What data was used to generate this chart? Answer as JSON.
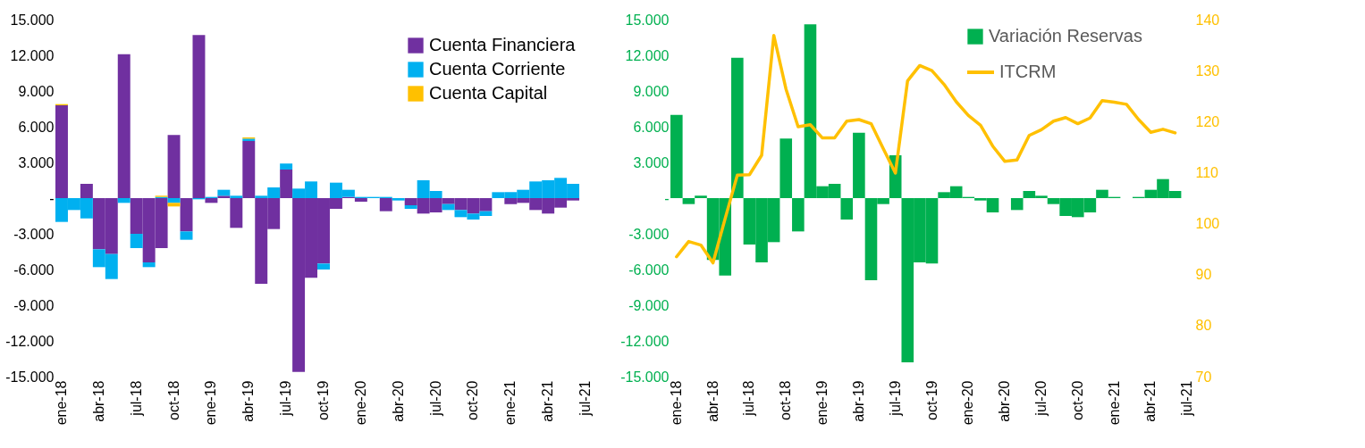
{
  "chart_data": [
    {
      "type": "bar",
      "stacked": true,
      "legend": "top right",
      "categories": [
        "ene-18",
        null,
        null,
        "abr-18",
        null,
        null,
        "jul-18",
        null,
        null,
        "oct-18",
        null,
        null,
        "ene-19",
        null,
        null,
        "abr-19",
        null,
        null,
        "jul-19",
        null,
        null,
        "oct-19",
        null,
        null,
        "ene-20",
        null,
        null,
        "abr-20",
        null,
        null,
        "jul-20",
        null,
        null,
        "oct-20",
        null,
        null,
        "ene-21",
        null,
        null,
        "abr-21",
        null,
        null,
        "jul-21"
      ],
      "ylim": [
        -15000,
        15000
      ],
      "yticks": [
        {
          "value": -15000,
          "label": "-15.000"
        },
        {
          "value": -12000,
          "label": "-12.000"
        },
        {
          "value": -9000,
          "label": "-9.000"
        },
        {
          "value": -6000,
          "label": "-6.000"
        },
        {
          "value": -3000,
          "label": "-3.000"
        },
        {
          "value": 0,
          "label": "-"
        },
        {
          "value": 3000,
          "label": "3.000"
        },
        {
          "value": 6000,
          "label": "6.000"
        },
        {
          "value": 9000,
          "label": "9.000"
        },
        {
          "value": 12000,
          "label": "12.000"
        },
        {
          "value": 15000,
          "label": "15.000"
        }
      ],
      "series": [
        {
          "name": "Cuenta Financiera",
          "color": "#7030a0",
          "values": [
            7800,
            null,
            1200,
            -4300,
            -4700,
            12100,
            -3000,
            -5400,
            -4200,
            5300,
            -2800,
            13700,
            -400,
            200,
            -2500,
            4800,
            -7200,
            -2600,
            2400,
            -14600,
            -6700,
            -5500,
            -900,
            100,
            -300,
            null,
            -1100,
            null,
            -600,
            -1300,
            -1200,
            -500,
            -1000,
            -1300,
            -1100,
            null,
            -500,
            -400,
            -1000,
            -1300,
            -800,
            -200,
            null
          ]
        },
        {
          "name": "Cuenta Corriente",
          "color": "#00b0f0",
          "values": [
            -2000,
            -1000,
            -1700,
            -1500,
            -2100,
            -400,
            -1200,
            -400,
            100,
            -400,
            -700,
            -100,
            100,
            500,
            200,
            200,
            200,
            900,
            500,
            800,
            1400,
            -500,
            1300,
            600,
            100,
            100,
            100,
            -200,
            -300,
            1500,
            600,
            -500,
            -600,
            -500,
            -400,
            500,
            500,
            700,
            1400,
            1500,
            1700,
            1200,
            null
          ]
        },
        {
          "name": "Cuenta Capital",
          "color": "#ffc000",
          "values": [
            100,
            null,
            null,
            null,
            null,
            null,
            null,
            null,
            100,
            -300,
            null,
            null,
            null,
            null,
            null,
            100,
            null,
            null,
            null,
            null,
            null,
            null,
            null,
            null,
            null,
            null,
            null,
            null,
            null,
            null,
            null,
            null,
            null,
            null,
            null,
            null,
            null,
            null,
            null,
            null,
            null,
            null,
            null
          ]
        }
      ]
    },
    {
      "type": "bar",
      "legend": "top right",
      "marker": "none",
      "categories": [
        "ene-18",
        null,
        null,
        "abr-18",
        null,
        null,
        "jul-18",
        null,
        null,
        "oct-18",
        null,
        null,
        "ene-19",
        null,
        null,
        "abr-19",
        null,
        null,
        "jul-19",
        null,
        null,
        "oct-19",
        null,
        null,
        "ene-20",
        null,
        null,
        "abr-20",
        null,
        null,
        "jul-20",
        null,
        null,
        "oct-20",
        null,
        null,
        "ene-21",
        null,
        null,
        "abr-21",
        null,
        null,
        "jul-21"
      ],
      "ylim": [
        -15000,
        15000
      ],
      "yticks": [
        {
          "value": -15000,
          "label": "-15.000"
        },
        {
          "value": -12000,
          "label": "-12.000"
        },
        {
          "value": -9000,
          "label": "-9.000"
        },
        {
          "value": -6000,
          "label": "-6.000"
        },
        {
          "value": -3000,
          "label": "-3.000"
        },
        {
          "value": 0,
          "label": "-"
        },
        {
          "value": 3000,
          "label": "3.000"
        },
        {
          "value": 6000,
          "label": "6.000"
        },
        {
          "value": 9000,
          "label": "9.000"
        },
        {
          "value": 12000,
          "label": "12.000"
        },
        {
          "value": 15000,
          "label": "15.000"
        }
      ],
      "y2lim": [
        70,
        140
      ],
      "y2ticks": [
        70,
        80,
        90,
        100,
        110,
        120,
        130,
        140
      ],
      "series": [
        {
          "name": "Variación Reservas",
          "color": "#00b050",
          "values": [
            7000,
            -500,
            200,
            -5200,
            -6500,
            11800,
            -3900,
            -5400,
            -3700,
            5000,
            -2800,
            14600,
            1000,
            1200,
            -1800,
            5500,
            -6900,
            -500,
            3600,
            -13800,
            -5400,
            -5500,
            500,
            1000,
            100,
            -200,
            -1200,
            null,
            -1000,
            600,
            200,
            -500,
            -1500,
            -1600,
            -1200,
            700,
            100,
            null,
            100,
            700,
            1600,
            600,
            null
          ]
        },
        {
          "name": "ITCRM",
          "type": "line",
          "axis": "y2",
          "color": "#ffc000",
          "values": [
            93.5,
            96.5,
            95.8,
            92.3,
            101,
            109.5,
            109.6,
            113.4,
            136.9,
            126.4,
            119,
            119.4,
            116.8,
            116.8,
            120.1,
            120.4,
            119.6,
            114.7,
            109.9,
            128,
            131,
            130,
            127.3,
            123.9,
            121.2,
            119.3,
            115.2,
            112.2,
            112.5,
            117.3,
            118.4,
            120.1,
            120.8,
            119.6,
            120.7,
            124.1,
            123.8,
            123.4,
            120.4,
            117.9,
            118.5,
            117.8,
            null
          ]
        }
      ]
    }
  ]
}
